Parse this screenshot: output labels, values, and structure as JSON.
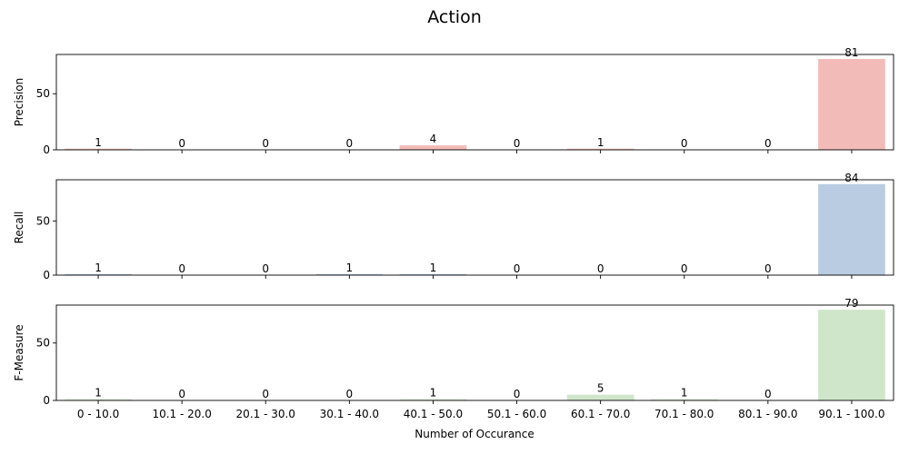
{
  "chart_data": {
    "type": "bar",
    "title": "Action",
    "xlabel": "Number of Occurance",
    "categories": [
      "0 - 10.0",
      "10.1 - 20.0",
      "20.1 - 30.0",
      "30.1 - 40.0",
      "40.1 - 50.0",
      "50.1 - 60.0",
      "60.1 - 70.0",
      "70.1 - 80.0",
      "80.1 - 90.0",
      "90.1 - 100.0"
    ],
    "subplots": [
      {
        "ylabel": "Precision",
        "values": [
          1,
          0,
          0,
          0,
          4,
          0,
          1,
          0,
          0,
          81
        ],
        "ylim": [
          0,
          85
        ],
        "yticks": [
          0,
          50
        ],
        "color": "#F2BBB8"
      },
      {
        "ylabel": "Recall",
        "values": [
          1,
          0,
          0,
          1,
          1,
          0,
          0,
          0,
          0,
          84
        ],
        "ylim": [
          0,
          88
        ],
        "yticks": [
          0,
          50
        ],
        "color": "#B9CCE1"
      },
      {
        "ylabel": "F-Measure",
        "values": [
          1,
          0,
          0,
          0,
          1,
          0,
          5,
          1,
          0,
          79
        ],
        "ylim": [
          0,
          83
        ],
        "yticks": [
          0,
          50
        ],
        "color": "#D0E6CA"
      }
    ],
    "grid": false,
    "legend": "none"
  }
}
